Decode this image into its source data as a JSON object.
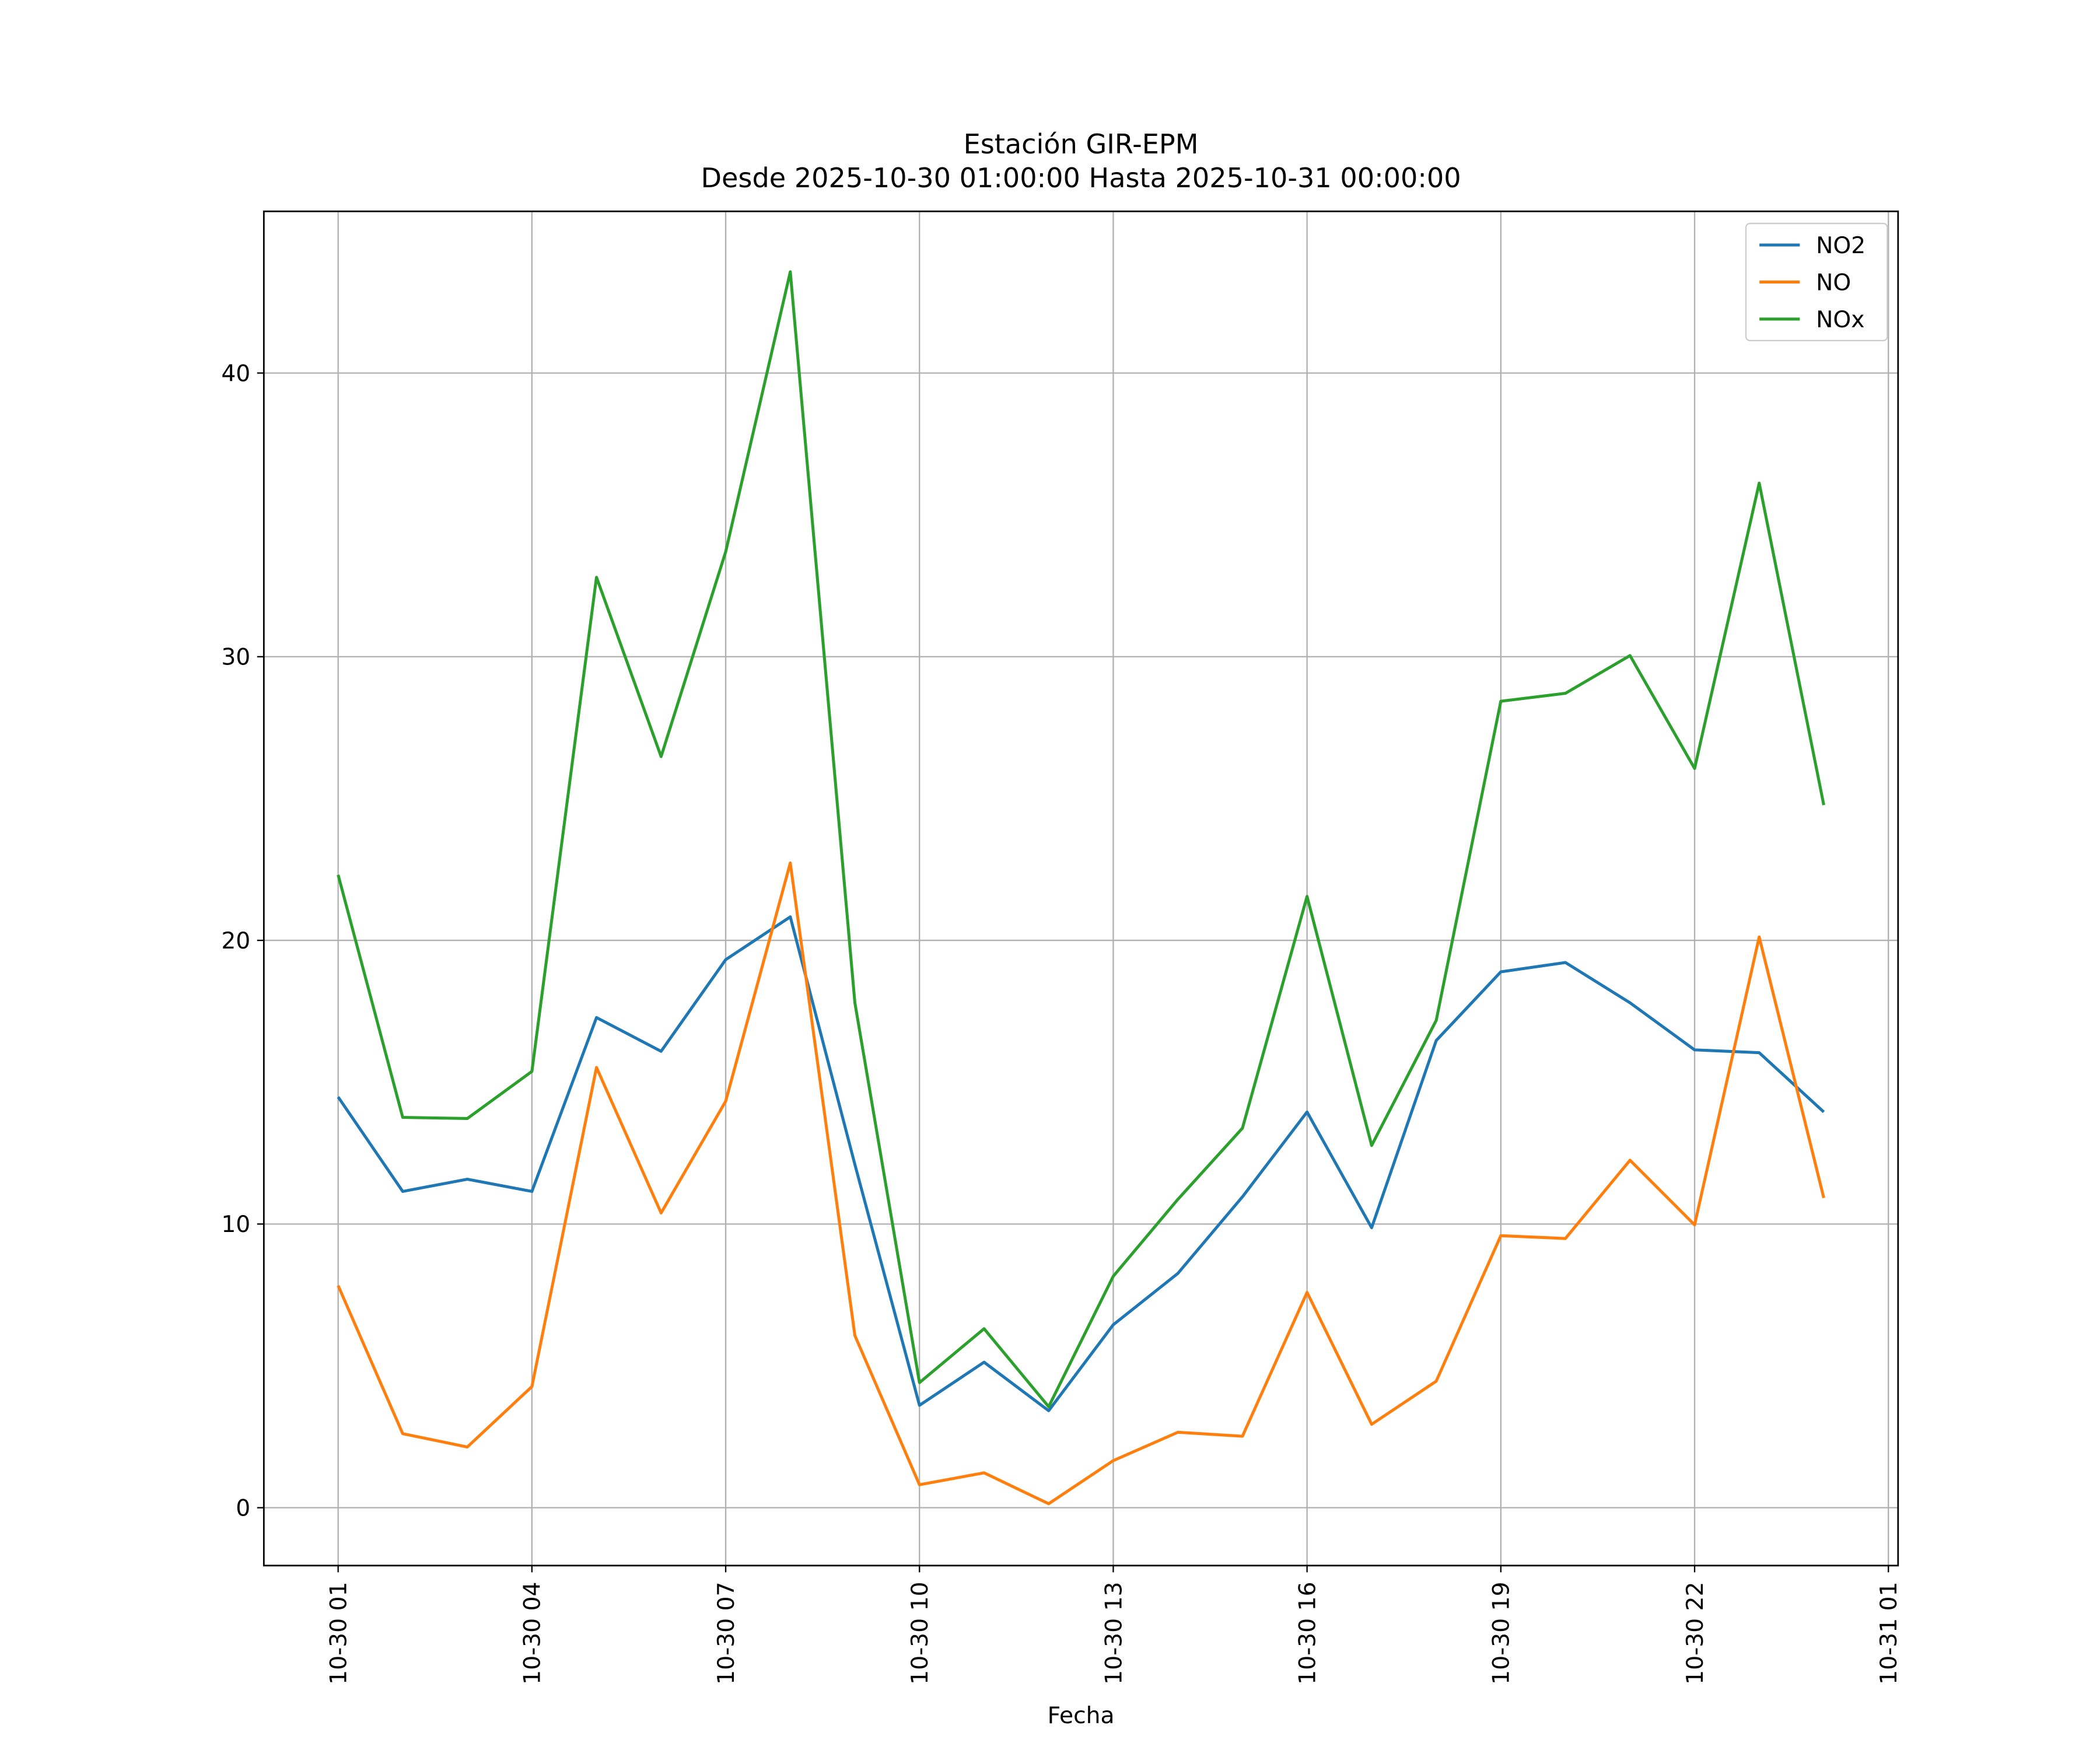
{
  "chart_data": {
    "type": "line",
    "title": "Estación GIR-EPM",
    "subtitle": "Desde 2025-10-30 01:00:00 Hasta 2025-10-31 00:00:00",
    "x_label": "Fecha",
    "x": [
      "10-30 01",
      "10-30 02",
      "10-30 03",
      "10-30 04",
      "10-30 05",
      "10-30 06",
      "10-30 07",
      "10-30 08",
      "10-30 09",
      "10-30 10",
      "10-30 11",
      "10-30 12",
      "10-30 13",
      "10-30 14",
      "10-30 15",
      "10-30 16",
      "10-30 17",
      "10-30 18",
      "10-30 19",
      "10-30 20",
      "10-30 21",
      "10-30 22",
      "10-30 23",
      "10-31 00"
    ],
    "xticks": [
      "10-30 01",
      "10-30 04",
      "10-30 07",
      "10-30 10",
      "10-30 13",
      "10-30 16",
      "10-30 19",
      "10-30 22",
      "10-31 01"
    ],
    "series": [
      {
        "name": "NO2",
        "color": "#1f77b4",
        "values": [
          14.48,
          11.15,
          11.58,
          11.15,
          17.28,
          16.09,
          19.32,
          20.83,
          12.1,
          3.61,
          5.13,
          3.42,
          6.45,
          8.26,
          10.96,
          13.95,
          9.87,
          16.47,
          18.89,
          19.22,
          17.8,
          16.14,
          16.04,
          13.95
        ]
      },
      {
        "name": "NO",
        "color": "#ff7f0e",
        "values": [
          7.83,
          2.61,
          2.14,
          4.27,
          15.52,
          10.39,
          14.33,
          22.73,
          6.07,
          0.81,
          1.23,
          0.14,
          1.66,
          2.66,
          2.52,
          7.59,
          2.94,
          4.46,
          9.59,
          9.49,
          12.25,
          9.97,
          20.12,
          10.92
        ]
      },
      {
        "name": "NOx",
        "color": "#2ca02c",
        "values": [
          22.31,
          13.76,
          13.72,
          15.38,
          32.8,
          26.48,
          33.7,
          43.57,
          17.8,
          4.41,
          6.31,
          3.56,
          8.16,
          10.87,
          13.38,
          21.55,
          12.77,
          17.18,
          28.43,
          28.71,
          30.04,
          26.06,
          36.12,
          24.77
        ]
      }
    ],
    "ylim": [
      -2.04,
      45.7
    ],
    "yticks": [
      0,
      10,
      20,
      30,
      40
    ],
    "grid": true,
    "legend": "upper right"
  }
}
